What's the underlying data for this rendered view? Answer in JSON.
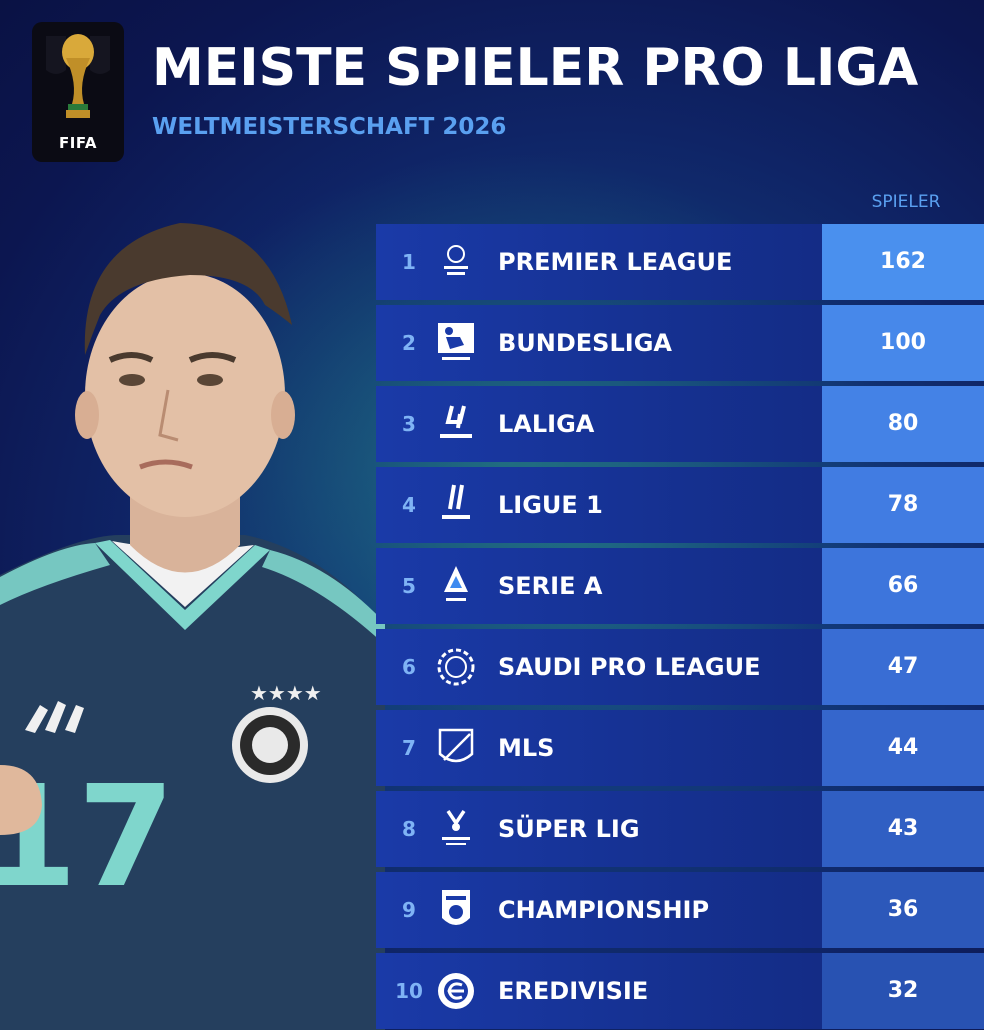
{
  "header": {
    "logo_text": "FIFA",
    "title": "MEISTE SPIELER PRO LIGA",
    "subtitle": "WELTMEISTERSCHAFT 2026"
  },
  "table": {
    "column_header": "SPIELER",
    "rows": [
      {
        "rank": "1",
        "league": "PREMIER LEAGUE",
        "players": "162",
        "icon": "premier-league-logo",
        "value_color": "#4a90ee"
      },
      {
        "rank": "2",
        "league": "BUNDESLIGA",
        "players": "100",
        "icon": "bundesliga-logo",
        "value_color": "#4788ea"
      },
      {
        "rank": "3",
        "league": "LALIGA",
        "players": "80",
        "icon": "laliga-logo",
        "value_color": "#4482e6"
      },
      {
        "rank": "4",
        "league": "LIGUE 1",
        "players": "78",
        "icon": "ligue1-logo",
        "value_color": "#417ce2"
      },
      {
        "rank": "5",
        "league": "SERIE A",
        "players": "66",
        "icon": "serie-a-logo",
        "value_color": "#3d75dc"
      },
      {
        "rank": "6",
        "league": "SAUDI PRO LEAGUE",
        "players": "47",
        "icon": "saudi-pro-league-logo",
        "value_color": "#396dd4"
      },
      {
        "rank": "7",
        "league": "MLS",
        "players": "44",
        "icon": "mls-logo",
        "value_color": "#3566cc"
      },
      {
        "rank": "8",
        "league": "SÜPER LIG",
        "players": "43",
        "icon": "super-lig-logo",
        "value_color": "#305fc3"
      },
      {
        "rank": "9",
        "league": "CHAMPIONSHIP",
        "players": "36",
        "icon": "championship-logo",
        "value_color": "#2c58ba"
      },
      {
        "rank": "10",
        "league": "EREDIVISIE",
        "players": "32",
        "icon": "eredivisie-logo",
        "value_color": "#2852b2"
      }
    ]
  }
}
